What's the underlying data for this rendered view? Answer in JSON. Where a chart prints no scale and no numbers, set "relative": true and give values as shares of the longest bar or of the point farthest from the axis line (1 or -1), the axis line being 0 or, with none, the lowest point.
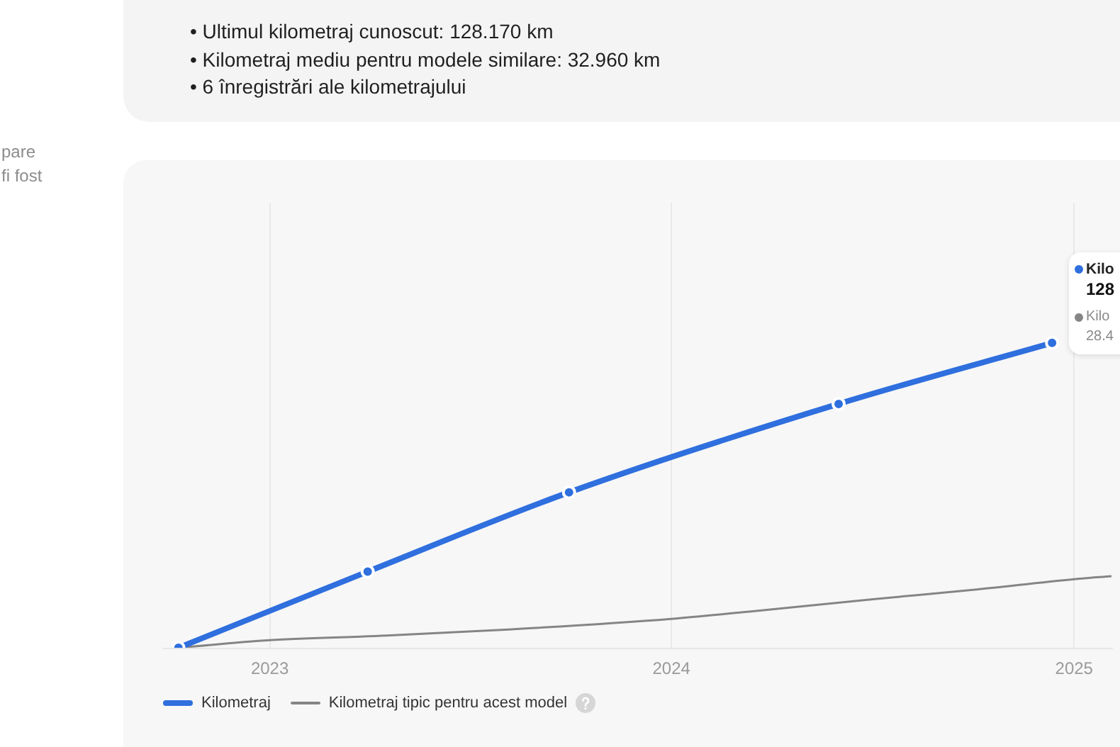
{
  "chart_data": {
    "type": "line",
    "relative": true,
    "grid": "x",
    "legend": "bottom",
    "annotations": [
      "pare",
      "fi fost",
      "• Ultimul kilometraj cunoscut: 128.170 km",
      "• Kilometraj mediu pentru modele similare: 32.960 km",
      "• 6 înregistrări ale kilometrajului",
      "Kilo",
      "128",
      "Kilo",
      "28.4"
    ],
    "xlim": [
      "2022-09-26",
      "2025-02-04"
    ],
    "xticks": [
      "2023",
      "2024",
      "2025"
    ],
    "series": [
      {
        "name": "Kilometraj",
        "color": "#2f6fde",
        "marker": "circle",
        "x": [
          "2022-10-10",
          "2023-03-31",
          "2023-09-30",
          "2024-06-01",
          "2024-12-12"
        ],
        "values": [
          0,
          0.25,
          0.51,
          0.8,
          1
        ]
      },
      {
        "name": "Kilometraj tipic pentru acest model",
        "color": "#858585",
        "marker": "none",
        "x": [
          "2022-10-10",
          "2023-01-01",
          "2023-04-17",
          "2023-08-06",
          "2024-01-01",
          "2024-03-15",
          "2024-07-04",
          "2024-10-01",
          "2025-01-01",
          "2025-02-04"
        ],
        "values": [
          0,
          0.025,
          0.04,
          0.06,
          0.095,
          0.12,
          0.16,
          0.19,
          0.225,
          0.235
        ]
      }
    ]
  }
}
